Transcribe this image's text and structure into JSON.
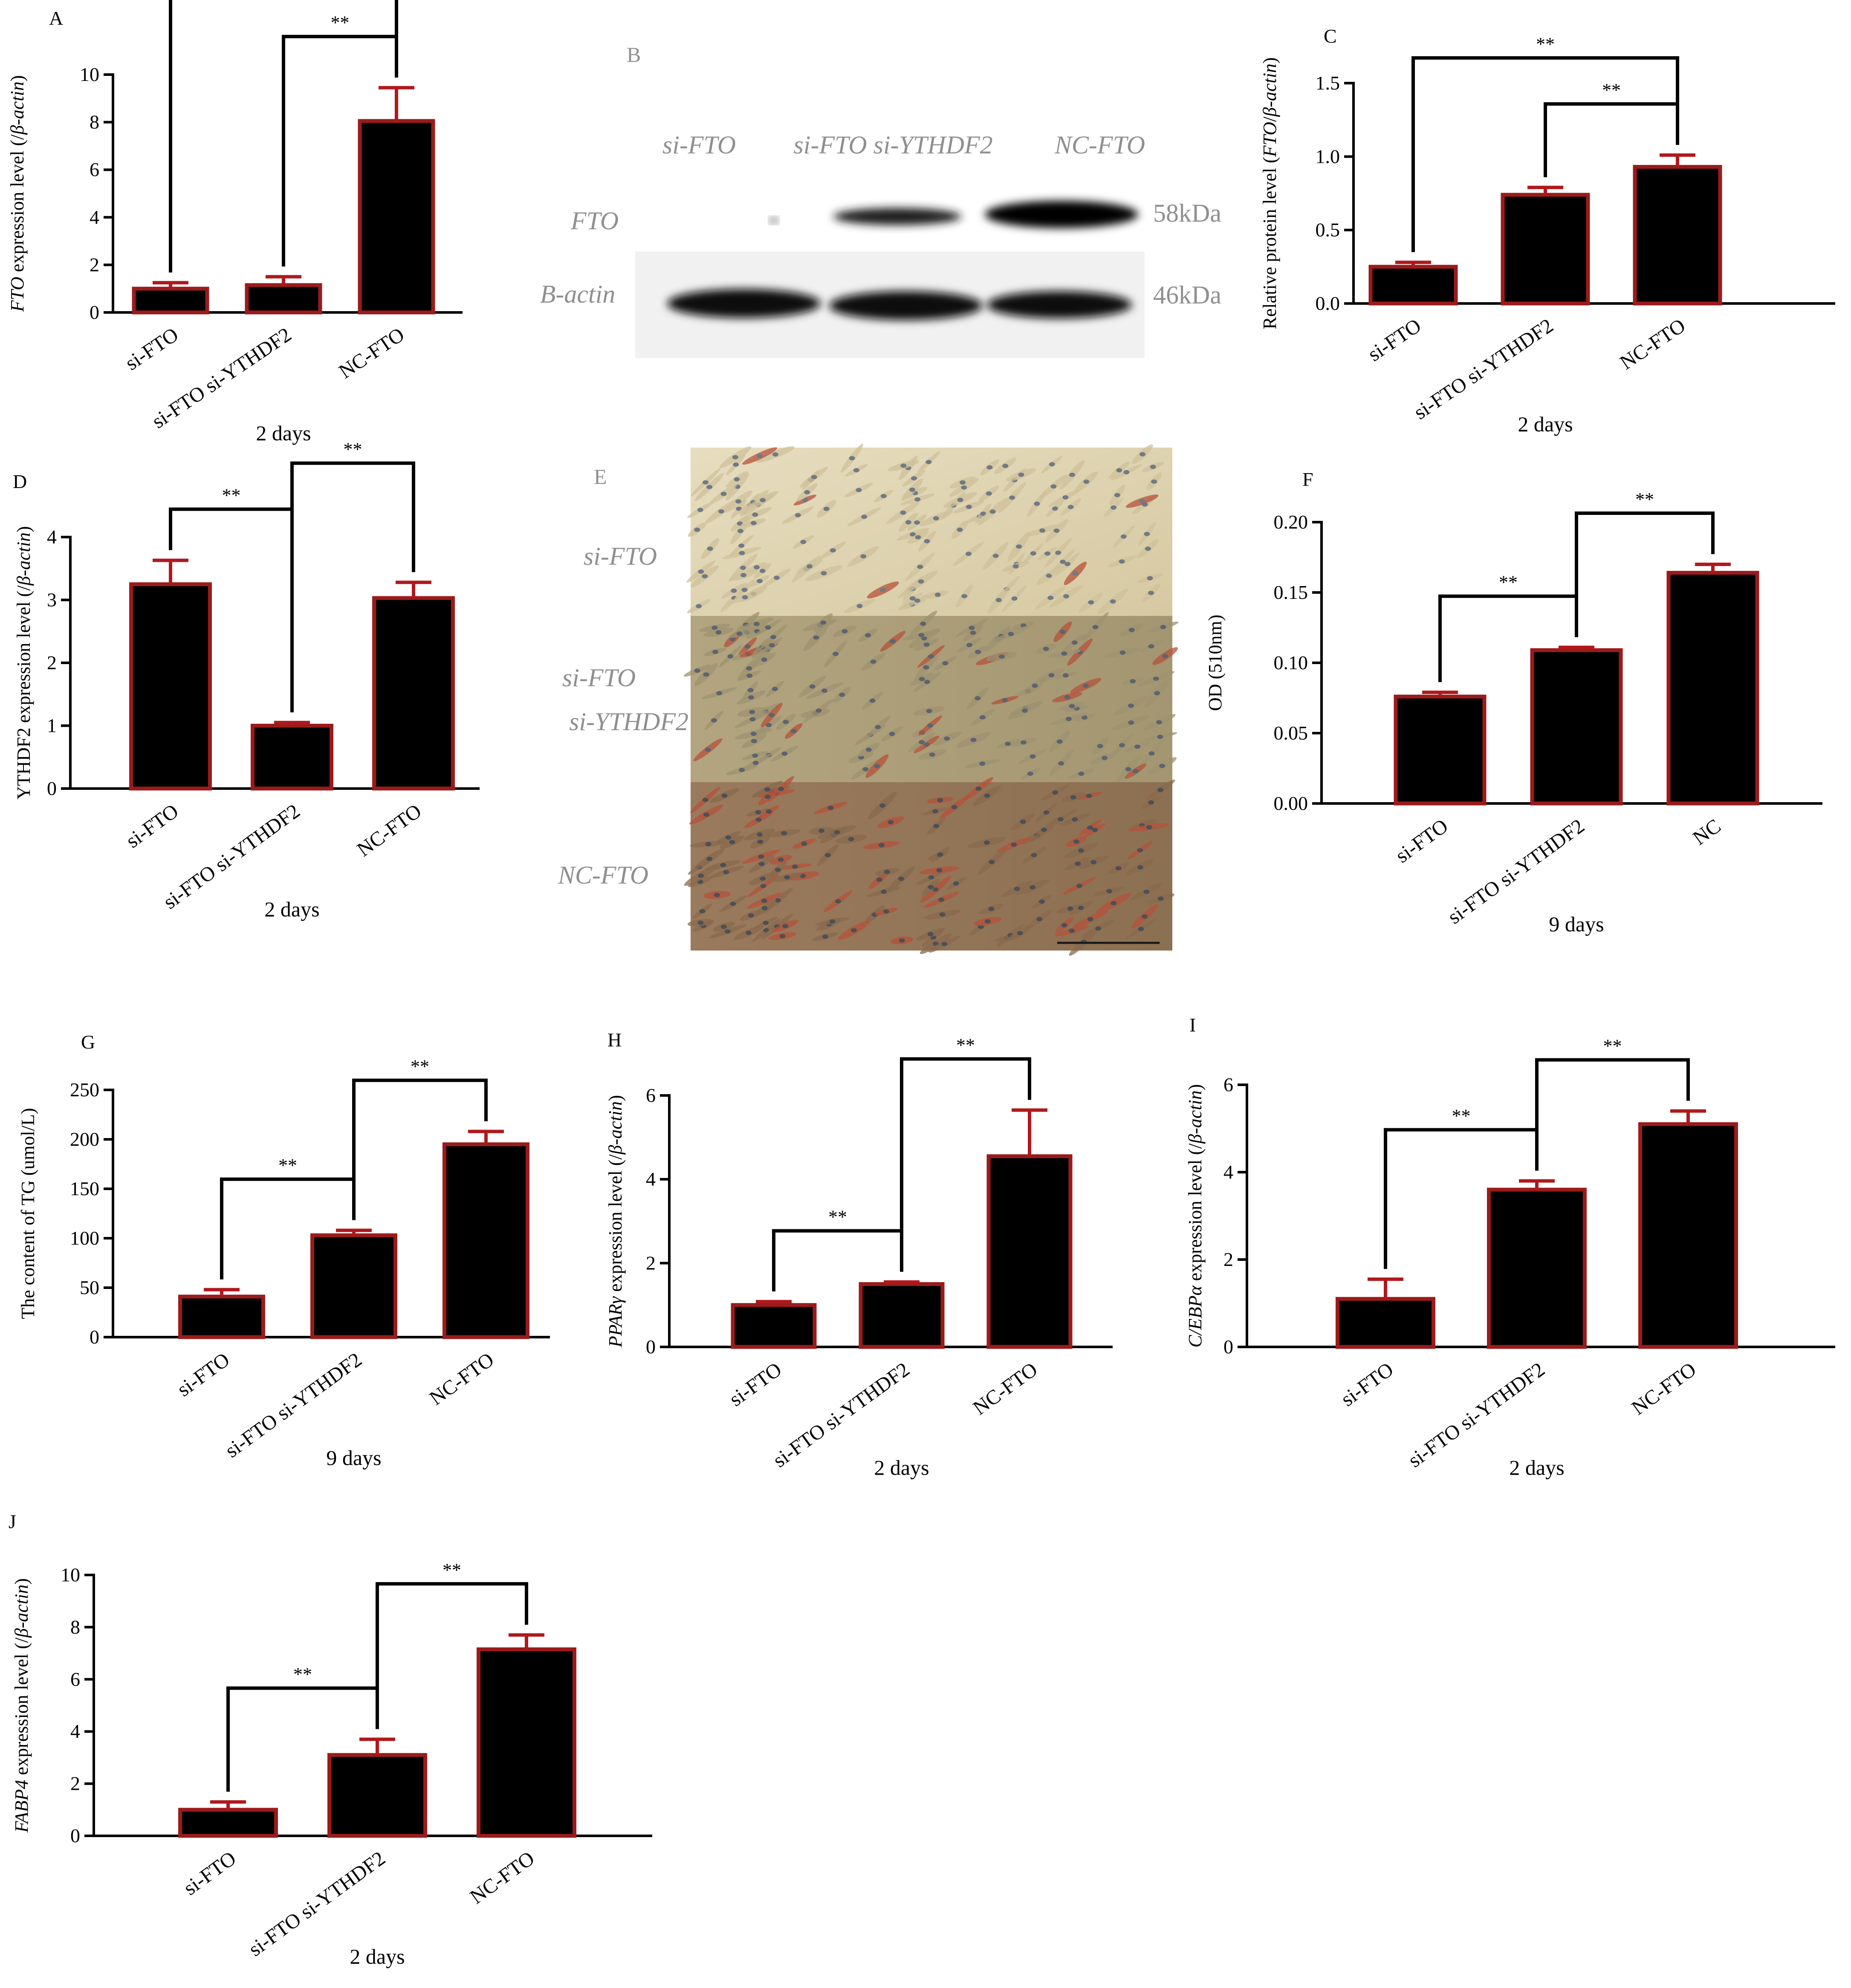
{
  "panels": {
    "A": {
      "letter": "A"
    },
    "B": {
      "letter": "B",
      "lanes": [
        "si-FTO",
        "si-FTO si-YTHDF2",
        "NC-FTO"
      ],
      "rows": [
        "FTO",
        "Β-actin"
      ],
      "sizes": [
        "58kDa",
        "46kDa"
      ]
    },
    "E": {
      "letter": "E",
      "labels": [
        [
          "si-FTO"
        ],
        [
          "si-FTO",
          "si-YTHDF2"
        ],
        [
          "NC-FTO"
        ]
      ]
    }
  },
  "colors": {
    "bar_fill": "#000000",
    "bar_edge": "#9b1b1b",
    "error": "#b0191c"
  },
  "chart_data": [
    {
      "id": "A",
      "type": "bar",
      "letter": "A",
      "categories": [
        "si-FTO",
        "si-FTO si-YTHDF2",
        "NC-FTO"
      ],
      "values": [
        1.0,
        1.15,
        8.05
      ],
      "errors": [
        0.25,
        0.35,
        1.4
      ],
      "ylim": [
        0,
        10
      ],
      "ticks": [
        0,
        2,
        4,
        6,
        8,
        10
      ],
      "tickDecimals": 0,
      "ylabel_rich": [
        {
          "t": "FTO",
          "i": true
        },
        {
          "t": " expression level (/",
          "i": false
        },
        {
          "t": "β-actin",
          "i": true
        },
        {
          "t": ")",
          "i": false
        }
      ],
      "xlabel": "2 days",
      "sig": [
        {
          "from": 0,
          "to": 2,
          "label": "**"
        },
        {
          "from": 1,
          "to": 2,
          "label": "**"
        }
      ]
    },
    {
      "id": "C",
      "type": "bar",
      "letter": "C",
      "categories": [
        "si-FTO",
        "si-FTO si-YTHDF2",
        "NC-FTO"
      ],
      "values": [
        0.25,
        0.74,
        0.93
      ],
      "errors": [
        0.03,
        0.05,
        0.08
      ],
      "ylim": [
        0,
        1.5
      ],
      "ticks": [
        0,
        0.5,
        1.0,
        1.5
      ],
      "tickDecimals": 1,
      "ylabel_rich": [
        {
          "t": "Relative protein level (",
          "i": false
        },
        {
          "t": "FTO",
          "i": true
        },
        {
          "t": "/",
          "i": false
        },
        {
          "t": "β-actin",
          "i": true
        },
        {
          "t": ")",
          "i": false
        }
      ],
      "xlabel": "2 days",
      "sig": [
        {
          "from": 0,
          "to": 2,
          "label": "**"
        },
        {
          "from": 1,
          "to": 2,
          "label": "**"
        }
      ]
    },
    {
      "id": "D",
      "type": "bar",
      "letter": "D",
      "categories": [
        "si-FTO",
        "si-FTO si-YTHDF2",
        "NC-FTO"
      ],
      "values": [
        3.25,
        1.0,
        3.03
      ],
      "errors": [
        0.38,
        0.05,
        0.25
      ],
      "ylim": [
        0,
        4
      ],
      "ticks": [
        0,
        1,
        2,
        3,
        4
      ],
      "tickDecimals": 0,
      "ylabel_rich": [
        {
          "t": "YTHDF2 expression level (/",
          "i": false
        },
        {
          "t": "β-actin",
          "i": true
        },
        {
          "t": ")",
          "i": false
        }
      ],
      "xlabel": "2 days",
      "sig": [
        {
          "from": 0,
          "to": 1,
          "label": "**"
        },
        {
          "from": 1,
          "to": 2,
          "label": "**"
        }
      ]
    },
    {
      "id": "F",
      "type": "bar",
      "letter": "F",
      "categories": [
        "si-FTO",
        "si-FTO si-YTHDF2",
        "NC"
      ],
      "values": [
        0.076,
        0.109,
        0.164
      ],
      "errors": [
        0.003,
        0.002,
        0.006
      ],
      "ylim": [
        0,
        0.2
      ],
      "ticks": [
        0,
        0.05,
        0.1,
        0.15,
        0.2
      ],
      "tickDecimals": 2,
      "ylabel_rich": [
        {
          "t": "OD (510nm)",
          "i": false
        }
      ],
      "xlabel": "9 days",
      "sig": [
        {
          "from": 0,
          "to": 1,
          "label": "**"
        },
        {
          "from": 1,
          "to": 2,
          "label": "**"
        }
      ]
    },
    {
      "id": "G",
      "type": "bar",
      "letter": "G",
      "categories": [
        "si-FTO",
        "si-FTO si-YTHDF2",
        "NC-FTO"
      ],
      "values": [
        41,
        103,
        195
      ],
      "errors": [
        7,
        5,
        13
      ],
      "ylim": [
        0,
        250
      ],
      "ticks": [
        0,
        50,
        100,
        150,
        200,
        250
      ],
      "tickDecimals": 0,
      "ylabel_rich": [
        {
          "t": "The content of TG (umol/L)",
          "i": false
        }
      ],
      "xlabel": "9 days",
      "sig": [
        {
          "from": 0,
          "to": 1,
          "label": "**"
        },
        {
          "from": 1,
          "to": 2,
          "label": "**"
        }
      ]
    },
    {
      "id": "H",
      "type": "bar",
      "letter": "H",
      "categories": [
        "si-FTO",
        "si-FTO si-YTHDF2",
        "NC-FTO"
      ],
      "values": [
        1.0,
        1.5,
        4.55
      ],
      "errors": [
        0.08,
        0.05,
        1.1
      ],
      "ylim": [
        0,
        6
      ],
      "ticks": [
        0,
        2,
        4,
        6
      ],
      "tickDecimals": 0,
      "ylabel_rich": [
        {
          "t": "PPARγ",
          "i": true
        },
        {
          "t": " expression level (/",
          "i": false
        },
        {
          "t": "β-actin",
          "i": true
        },
        {
          "t": ")",
          "i": false
        }
      ],
      "xlabel": "2 days",
      "sig": [
        {
          "from": 0,
          "to": 1,
          "label": "**"
        },
        {
          "from": 1,
          "to": 2,
          "label": "**"
        }
      ]
    },
    {
      "id": "I",
      "type": "bar",
      "letter": "I",
      "categories": [
        "si-FTO",
        "si-FTO si-YTHDF2",
        "NC-FTO"
      ],
      "values": [
        1.1,
        3.6,
        5.1
      ],
      "errors": [
        0.45,
        0.2,
        0.3
      ],
      "ylim": [
        0,
        6
      ],
      "ticks": [
        0,
        2,
        4,
        6
      ],
      "tickDecimals": 0,
      "ylabel_rich": [
        {
          "t": "C/EBPα",
          "i": true
        },
        {
          "t": " expression level (/",
          "i": false
        },
        {
          "t": "β-actin",
          "i": true
        },
        {
          "t": ")",
          "i": false
        }
      ],
      "xlabel": "2 days",
      "sig": [
        {
          "from": 0,
          "to": 1,
          "label": "**"
        },
        {
          "from": 1,
          "to": 2,
          "label": "**"
        }
      ]
    },
    {
      "id": "J",
      "type": "bar",
      "letter": "J",
      "categories": [
        "si-FTO",
        "si-FTO si-YTHDF2",
        "NC-FTO"
      ],
      "values": [
        1.0,
        3.1,
        7.15
      ],
      "errors": [
        0.3,
        0.6,
        0.55
      ],
      "ylim": [
        0,
        10
      ],
      "ticks": [
        0,
        2,
        4,
        6,
        8,
        10
      ],
      "tickDecimals": 0,
      "ylabel_rich": [
        {
          "t": "FABP4",
          "i": true
        },
        {
          "t": " expression level (/",
          "i": false
        },
        {
          "t": "β-actin",
          "i": true
        },
        {
          "t": ")",
          "i": false
        }
      ],
      "xlabel": "2 days",
      "sig": [
        {
          "from": 0,
          "to": 1,
          "label": "**"
        },
        {
          "from": 1,
          "to": 2,
          "label": "**"
        }
      ]
    }
  ]
}
